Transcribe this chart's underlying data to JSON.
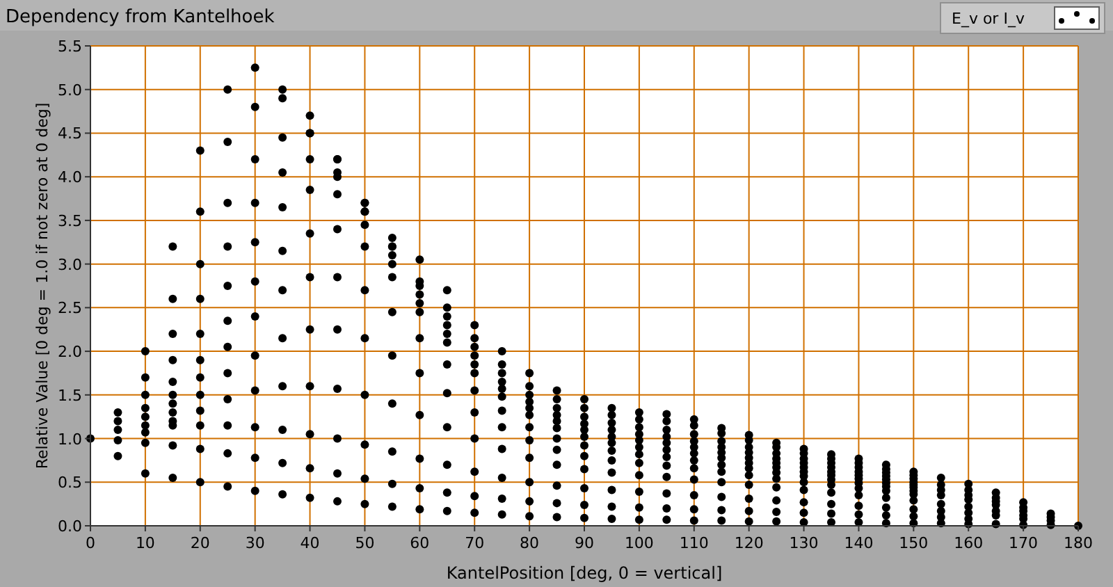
{
  "chart_data": {
    "type": "scatter",
    "title": "Dependency from Kantelhoek",
    "xlabel": "KantelPosition [deg, 0 = vertical]",
    "ylabel": "Relative Value [0 deg = 1.0 if not zero at 0 deg]",
    "xlim": [
      0,
      180
    ],
    "xticks": [
      0,
      10,
      20,
      30,
      40,
      50,
      60,
      70,
      80,
      90,
      100,
      110,
      120,
      130,
      140,
      150,
      160,
      170,
      180
    ],
    "ylim": [
      0,
      5.5
    ],
    "yticks": [
      {
        "value": 0,
        "label": "0.0"
      },
      {
        "value": 0.5,
        "label": "0.5"
      },
      {
        "value": 1,
        "label": "1.0"
      },
      {
        "value": 1.5,
        "label": "1.5"
      },
      {
        "value": 2,
        "label": "2.0"
      },
      {
        "value": 2.5,
        "label": "2.5"
      },
      {
        "value": 3,
        "label": "3.0"
      },
      {
        "value": 3.5,
        "label": "3.5"
      },
      {
        "value": 4,
        "label": "4.0"
      },
      {
        "value": 4.5,
        "label": "4.5"
      },
      {
        "value": 5,
        "label": "5.0"
      },
      {
        "value": 5.5,
        "label": "5.5"
      }
    ],
    "grid": true,
    "legend": "top right",
    "marker": "circle",
    "series": [
      {
        "name": "E_v or I_v",
        "color": "#000000",
        "x": [
          0,
          5,
          10,
          15,
          20,
          25,
          30,
          35,
          40,
          45,
          50,
          55,
          60,
          65,
          70,
          75,
          80,
          85,
          90,
          95,
          100,
          105,
          110,
          115,
          120,
          125,
          130,
          135,
          140,
          145,
          150,
          155,
          160,
          165,
          170,
          175,
          180,
          5,
          10,
          15,
          20,
          25,
          30,
          35,
          40,
          45,
          50,
          55,
          60,
          65,
          70,
          75,
          80,
          85,
          90,
          95,
          100,
          105,
          110,
          115,
          120,
          125,
          130,
          135,
          140,
          145,
          150,
          10,
          15,
          20,
          25,
          30,
          35,
          40,
          45,
          50,
          55,
          60,
          65,
          70,
          75,
          80,
          85,
          90,
          95,
          100,
          105,
          110,
          115,
          120,
          125,
          130,
          135,
          140,
          145,
          150,
          155,
          160,
          165,
          5,
          10,
          15,
          20,
          25,
          30,
          35,
          40,
          45,
          50,
          55,
          60,
          65,
          70,
          75,
          80,
          85,
          90,
          95,
          100,
          105,
          110,
          115,
          120,
          125,
          130,
          135,
          140,
          145,
          150,
          170,
          10,
          15,
          20,
          25,
          30,
          35,
          40,
          45,
          50,
          55,
          60,
          65,
          70,
          75,
          80,
          85,
          90,
          95,
          100,
          105,
          110,
          115,
          120,
          125,
          130,
          135,
          140,
          145,
          150,
          155,
          160,
          165,
          175,
          15,
          20,
          25,
          30,
          35,
          40,
          45,
          50,
          55,
          60,
          65,
          70,
          75,
          80,
          85,
          90,
          95,
          100,
          105,
          110,
          115,
          120,
          125,
          130,
          135,
          140,
          145,
          150,
          10,
          15,
          20,
          25,
          30,
          35,
          40,
          45,
          50,
          55,
          60,
          65,
          70,
          75,
          80,
          85,
          90,
          95,
          100,
          105,
          110,
          115,
          120,
          125,
          130,
          135,
          140,
          145,
          150,
          155,
          160,
          165,
          170,
          15,
          20,
          25,
          30,
          35,
          40,
          45,
          50,
          55,
          60,
          65,
          70,
          75,
          80,
          85,
          90,
          95,
          100,
          105,
          110,
          115,
          120,
          125,
          130,
          135,
          140,
          145,
          150,
          10,
          15,
          20,
          25,
          30,
          35,
          40,
          45,
          50,
          55,
          60,
          65,
          70,
          75,
          80,
          85,
          90,
          95,
          100,
          105,
          110,
          115,
          120,
          125,
          130,
          135,
          140,
          145,
          150,
          155,
          160,
          165,
          170,
          175,
          15,
          20,
          25,
          30,
          35,
          40,
          45,
          50,
          55,
          60,
          65,
          70,
          75,
          80,
          85,
          90,
          95,
          100,
          105,
          110,
          115,
          120,
          125,
          130,
          135,
          140,
          145,
          150,
          155,
          160,
          165,
          170,
          5,
          10,
          15,
          20,
          25,
          30,
          35,
          40,
          45,
          50,
          55,
          60,
          65,
          70,
          75,
          80,
          85,
          90,
          95,
          100,
          105,
          110,
          115,
          120,
          125,
          130,
          135,
          140,
          145,
          150,
          155,
          160,
          5,
          10,
          15,
          20,
          25,
          30,
          35,
          40,
          45,
          50,
          55,
          60,
          65,
          70,
          75,
          80,
          85,
          90,
          95,
          100,
          105,
          110,
          115,
          120,
          125,
          130,
          135,
          140,
          145,
          150,
          155,
          160,
          165,
          170,
          175
        ],
        "values": [
          1.0,
          1.3,
          2.0,
          3.2,
          4.3,
          5.0,
          5.25,
          5.0,
          4.5,
          4.0,
          3.6,
          3.3,
          3.05,
          2.7,
          2.3,
          2.0,
          1.75,
          1.55,
          1.45,
          1.35,
          1.3,
          1.28,
          1.22,
          1.12,
          1.04,
          0.95,
          0.88,
          0.82,
          0.77,
          0.7,
          0.62,
          0.55,
          0.48,
          0.38,
          0.27,
          0.14,
          0.0,
          1.2,
          1.7,
          2.6,
          3.6,
          4.4,
          4.8,
          4.9,
          4.7,
          4.2,
          3.7,
          3.2,
          2.8,
          2.5,
          2.15,
          1.85,
          1.6,
          1.45,
          1.35,
          1.27,
          1.22,
          1.2,
          1.15,
          1.06,
          0.98,
          0.9,
          0.83,
          0.77,
          0.72,
          0.65,
          0.58,
          1.5,
          2.2,
          3.0,
          3.7,
          4.2,
          4.45,
          4.5,
          4.2,
          3.7,
          3.2,
          2.75,
          2.4,
          2.05,
          1.75,
          1.5,
          1.35,
          1.25,
          1.18,
          1.13,
          1.1,
          1.05,
          0.97,
          0.9,
          0.83,
          0.77,
          0.72,
          0.67,
          0.61,
          0.54,
          0.47,
          0.41,
          0.32,
          1.1,
          1.35,
          1.9,
          2.6,
          3.2,
          3.7,
          4.05,
          4.2,
          4.05,
          3.6,
          3.1,
          2.65,
          2.3,
          1.95,
          1.65,
          1.42,
          1.27,
          1.17,
          1.1,
          1.05,
          1.02,
          0.97,
          0.9,
          0.84,
          0.77,
          0.72,
          0.67,
          0.62,
          0.57,
          0.5,
          0.21,
          1.25,
          1.65,
          2.2,
          2.75,
          3.25,
          3.65,
          3.85,
          3.8,
          3.45,
          3.0,
          2.55,
          2.2,
          1.85,
          1.57,
          1.35,
          1.2,
          1.1,
          1.02,
          0.98,
          0.95,
          0.9,
          0.84,
          0.78,
          0.72,
          0.67,
          0.62,
          0.58,
          0.53,
          0.47,
          0.41,
          0.35,
          0.28,
          0.1,
          1.5,
          1.9,
          2.35,
          2.8,
          3.15,
          3.35,
          3.4,
          3.2,
          2.85,
          2.45,
          2.1,
          1.75,
          1.48,
          1.27,
          1.12,
          1.02,
          0.95,
          0.9,
          0.87,
          0.83,
          0.78,
          0.72,
          0.67,
          0.62,
          0.58,
          0.54,
          0.49,
          0.44,
          1.15,
          1.4,
          1.7,
          2.05,
          2.4,
          2.7,
          2.85,
          2.85,
          2.7,
          2.45,
          2.15,
          1.85,
          1.55,
          1.32,
          1.13,
          1.0,
          0.92,
          0.86,
          0.82,
          0.79,
          0.75,
          0.7,
          0.66,
          0.61,
          0.57,
          0.53,
          0.49,
          0.45,
          0.4,
          0.35,
          0.3,
          0.24,
          0.17,
          1.3,
          1.5,
          1.75,
          1.95,
          2.15,
          2.25,
          2.25,
          2.15,
          1.95,
          1.75,
          1.52,
          1.3,
          1.13,
          0.98,
          0.87,
          0.8,
          0.75,
          0.72,
          0.69,
          0.66,
          0.62,
          0.58,
          0.54,
          0.5,
          0.47,
          0.43,
          0.4,
          0.36,
          1.07,
          1.2,
          1.32,
          1.45,
          1.55,
          1.6,
          1.6,
          1.57,
          1.5,
          1.4,
          1.27,
          1.13,
          1.0,
          0.88,
          0.78,
          0.7,
          0.65,
          0.61,
          0.58,
          0.56,
          0.53,
          0.5,
          0.47,
          0.44,
          0.41,
          0.38,
          0.35,
          0.32,
          0.29,
          0.25,
          0.22,
          0.17,
          0.12,
          0.06,
          1.15,
          1.15,
          1.15,
          1.13,
          1.1,
          1.05,
          1.0,
          0.93,
          0.85,
          0.77,
          0.7,
          0.62,
          0.55,
          0.5,
          0.46,
          0.43,
          0.41,
          0.39,
          0.37,
          0.35,
          0.33,
          0.31,
          0.29,
          0.27,
          0.25,
          0.23,
          0.21,
          0.19,
          0.17,
          0.15,
          0.12,
          0.08,
          0.98,
          0.95,
          0.92,
          0.88,
          0.83,
          0.78,
          0.72,
          0.66,
          0.6,
          0.54,
          0.48,
          0.43,
          0.38,
          0.34,
          0.31,
          0.28,
          0.26,
          0.24,
          0.22,
          0.21,
          0.2,
          0.19,
          0.18,
          0.17,
          0.16,
          0.15,
          0.14,
          0.13,
          0.12,
          0.11,
          0.1,
          0.08,
          0.8,
          0.6,
          0.55,
          0.5,
          0.45,
          0.4,
          0.36,
          0.32,
          0.28,
          0.25,
          0.22,
          0.19,
          0.17,
          0.15,
          0.13,
          0.11,
          0.1,
          0.09,
          0.08,
          0.07,
          0.07,
          0.06,
          0.06,
          0.05,
          0.05,
          0.04,
          0.04,
          0.04,
          0.03,
          0.03,
          0.03,
          0.02,
          0.02,
          0.01,
          0.01
        ]
      }
    ]
  }
}
